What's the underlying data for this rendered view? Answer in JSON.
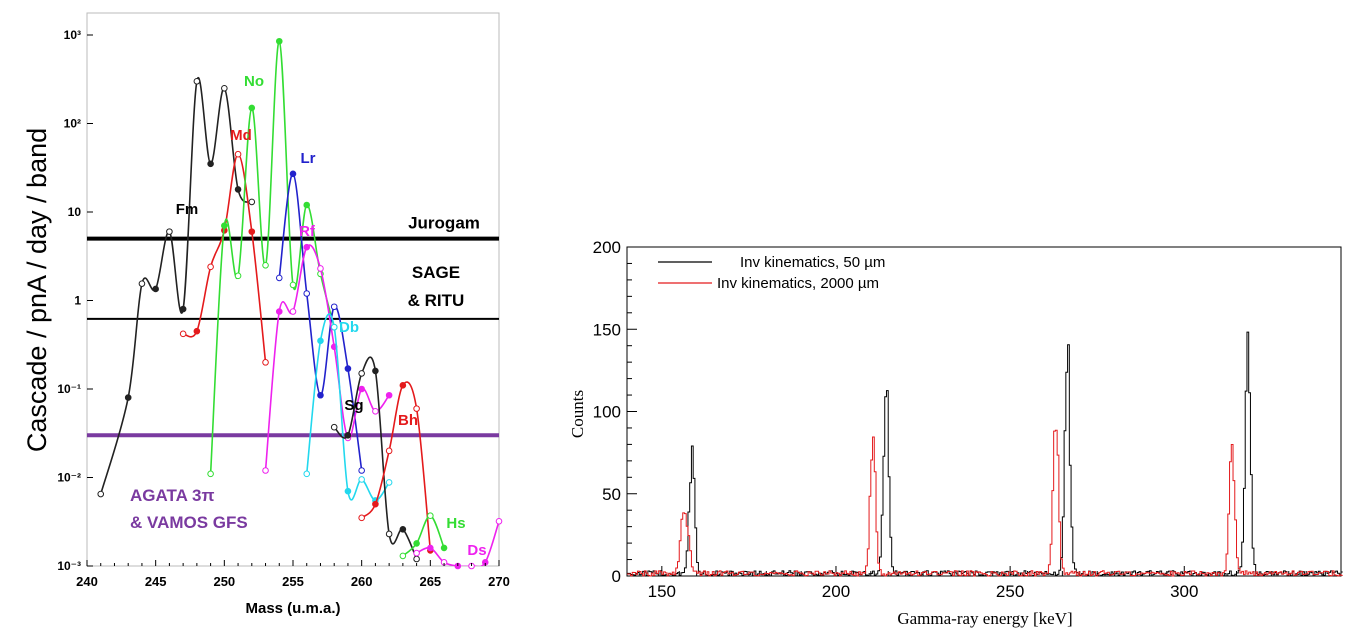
{
  "chart_data": [
    {
      "type": "line",
      "xlabel": "Mass (u.m.a.)",
      "ylabel": "Cascade / pnA / day / band",
      "xlim": [
        240,
        270
      ],
      "ylim": [
        0.001,
        1000
      ],
      "yscale": "log",
      "grid": false,
      "x_ticks": [
        240,
        245,
        250,
        255,
        260,
        265,
        270
      ],
      "y_tick_labels": [
        "10⁻³",
        "10⁻²",
        "10⁻¹",
        "1",
        "10",
        "10²",
        "10³"
      ],
      "y_tick_values": [
        0.001,
        0.01,
        0.1,
        1,
        10,
        100,
        1000
      ],
      "thresholds": [
        {
          "label": "Jurogam",
          "value": 5,
          "color": "#000000"
        },
        {
          "label": "SAGE",
          "label2": "& RITU",
          "value": 0.62,
          "color": "#000000"
        },
        {
          "label": "AGATA 3π",
          "label2": "& VAMOS GFS",
          "value": 0.03,
          "color": "#7a3aa0"
        }
      ],
      "series": [
        {
          "name": "Fm",
          "color": "#222222",
          "x": [
            241,
            243,
            244,
            245,
            246,
            247,
            248,
            249,
            250,
            251,
            252
          ],
          "y": [
            0.0065,
            0.08,
            1.55,
            1.35,
            6.0,
            0.8,
            300,
            35,
            250,
            18,
            13
          ]
        },
        {
          "name": "Md",
          "color": "#e41a1c",
          "x": [
            247,
            248,
            249,
            250,
            251,
            252,
            253
          ],
          "y": [
            0.42,
            0.45,
            2.4,
            6.2,
            45,
            6.0,
            0.2
          ]
        },
        {
          "name": "No",
          "color": "#33dd33",
          "x": [
            249,
            250,
            251,
            252,
            253,
            254,
            255,
            256,
            257,
            258
          ],
          "y": [
            0.011,
            7.0,
            1.9,
            150,
            2.5,
            850,
            1.5,
            12,
            2.0,
            0.5
          ]
        },
        {
          "name": "Lr",
          "color": "#2222cc",
          "x": [
            254,
            255,
            256,
            257,
            258,
            259,
            260
          ],
          "y": [
            1.8,
            27,
            1.2,
            0.085,
            0.85,
            0.17,
            0.012
          ]
        },
        {
          "name": "Rf",
          "color": "#ee22ee",
          "x": [
            253,
            254,
            255,
            256,
            257,
            258,
            259,
            260,
            261,
            262
          ],
          "y": [
            0.012,
            0.75,
            0.75,
            4.0,
            2.3,
            0.3,
            0.028,
            0.1,
            0.056,
            0.085
          ]
        },
        {
          "name": "Db",
          "color": "#22d8ee",
          "x": [
            256,
            257,
            258,
            259,
            260,
            261,
            262
          ],
          "y": [
            0.011,
            0.35,
            0.5,
            0.007,
            0.0095,
            0.0055,
            0.0088
          ]
        },
        {
          "name": "Sg",
          "color": "#222222",
          "x": [
            258,
            259,
            260,
            261,
            262,
            263,
            264
          ],
          "y": [
            0.037,
            0.03,
            0.15,
            0.16,
            0.0023,
            0.0026,
            0.0012
          ]
        },
        {
          "name": "Bh",
          "color": "#e41a1c",
          "x": [
            260,
            261,
            262,
            263,
            264,
            265
          ],
          "y": [
            0.0035,
            0.005,
            0.02,
            0.11,
            0.06,
            0.0015
          ]
        },
        {
          "name": "Hs",
          "color": "#33dd33",
          "x": [
            263,
            264,
            265,
            266
          ],
          "y": [
            0.0013,
            0.0018,
            0.0037,
            0.0016
          ]
        },
        {
          "name": "Ds",
          "color": "#ee22ee",
          "x": [
            264,
            265,
            266,
            267,
            268,
            269,
            270
          ],
          "y": [
            0.0014,
            0.0016,
            0.0011,
            0.001,
            0.001,
            0.0011,
            0.0032
          ]
        }
      ]
    },
    {
      "type": "line",
      "xlabel": "Gamma-ray energy [keV]",
      "ylabel": "Counts",
      "xlim": [
        140,
        345
      ],
      "ylim": [
        0,
        200
      ],
      "x_ticks": [
        150,
        200,
        250,
        300
      ],
      "y_ticks": [
        0,
        50,
        100,
        150,
        200
      ],
      "grid": false,
      "legend": "top-left",
      "series": [
        {
          "name": "Inv kinematics, 50 µm",
          "color": "#000000",
          "peaks": [
            {
              "x": 158.4,
              "y": 73
            },
            {
              "x": 214.1,
              "y": 111
            },
            {
              "x": 266.2,
              "y": 131
            },
            {
              "x": 318.0,
              "y": 132
            }
          ]
        },
        {
          "name": "Inv kinematics, 2000 µm",
          "color": "#e41a1c",
          "peaks": [
            {
              "x": 155.8,
              "y": 34
            },
            {
              "x": 157.2,
              "y": 22
            },
            {
              "x": 210.4,
              "y": 82
            },
            {
              "x": 262.9,
              "y": 96
            },
            {
              "x": 313.5,
              "y": 78
            }
          ]
        }
      ]
    }
  ]
}
